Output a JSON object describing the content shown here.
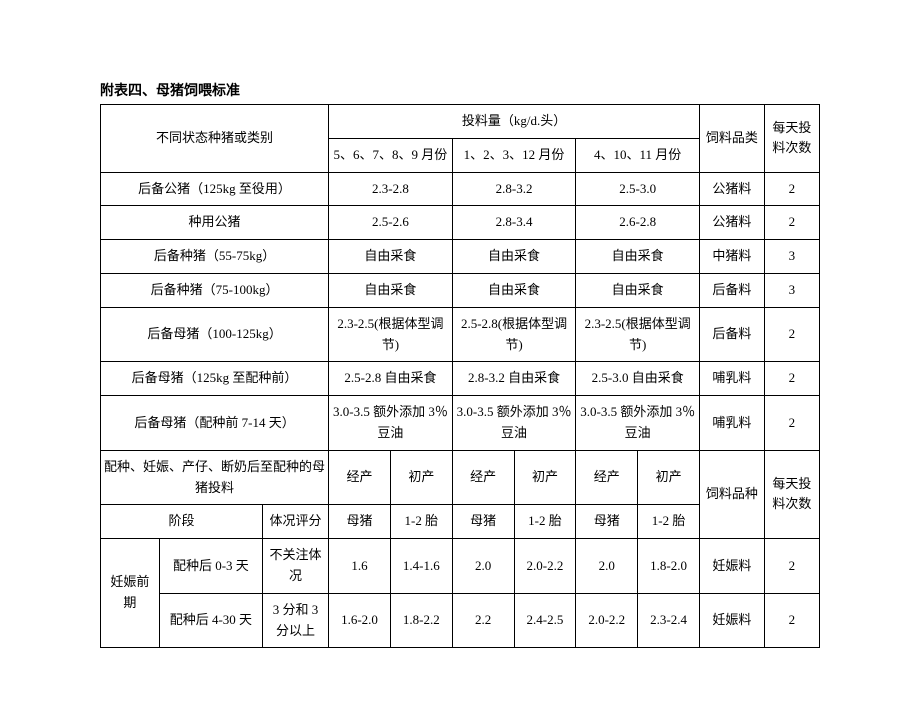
{
  "title": "附表四、母猪饲喂标准",
  "header": {
    "category": "不同状态种猪或类别",
    "feed_amount": "投料量（kg/d.头）",
    "months_a": "5、6、7、8、9 月份",
    "months_b": "1、2、3、12 月份",
    "months_c": "4、10、11 月份",
    "feed_type": "饲料品类",
    "times": "每天投料次数"
  },
  "rows_top": [
    {
      "cat": "后备公猪（125kg 至役用）",
      "a": "2.3-2.8",
      "b": "2.8-3.2",
      "c": "2.5-3.0",
      "feed": "公猪料",
      "times": "2"
    },
    {
      "cat": "种用公猪",
      "a": "2.5-2.6",
      "b": "2.8-3.4",
      "c": "2.6-2.8",
      "feed": "公猪料",
      "times": "2"
    },
    {
      "cat": "后备种猪（55-75kg）",
      "a": "自由采食",
      "b": "自由采食",
      "c": "自由采食",
      "feed": "中猪料",
      "times": "3"
    },
    {
      "cat": "后备种猪（75-100kg）",
      "a": "自由采食",
      "b": "自由采食",
      "c": "自由采食",
      "feed": "后备料",
      "times": "3"
    },
    {
      "cat": "后备母猪（100-125kg）",
      "a": "2.3-2.5(根据体型调节)",
      "b": "2.5-2.8(根据体型调节)",
      "c": "2.3-2.5(根据体型调节)",
      "feed": "后备料",
      "times": "2"
    },
    {
      "cat": "后备母猪（125kg 至配种前）",
      "a": "2.5-2.8 自由采食",
      "b": "2.8-3.2 自由采食",
      "c": "2.5-3.0 自由采食",
      "feed": "哺乳料",
      "times": "2"
    },
    {
      "cat": "后备母猪（配种前 7-14 天）",
      "a": "3.0-3.5 额外添加 3％豆油",
      "b": "3.0-3.5 额外添加 3％豆油",
      "c": "3.0-3.5 额外添加 3％豆油",
      "feed": "哺乳料",
      "times": "2"
    }
  ],
  "sub_header": {
    "cat": "配种、妊娠、产仔、断奶后至配种的母猪投料",
    "jing": "经产母猪",
    "chu": "初产1-2 胎",
    "jing_short": "经产",
    "chu_short": "初产",
    "jing_second": "母猪",
    "chu_second": "1-2 胎",
    "feed": "饲料品种",
    "times": "每天投料次数",
    "stage_col": "阶段",
    "bcs_col": "体况评分"
  },
  "rows_bottom": {
    "group": "妊娠前期",
    "r1": {
      "stage": "配种后 0-3 天",
      "bcs": "不关注体况",
      "d1": "1.6",
      "d2": "1.4-1.6",
      "d3": "2.0",
      "d4": "2.0-2.2",
      "d5": "2.0",
      "d6": "1.8-2.0",
      "feed": "妊娠料",
      "times": "2"
    },
    "r2": {
      "stage": "配种后 4-30 天",
      "bcs": "3 分和 3 分以上",
      "d1": "1.6-2.0",
      "d2": "1.8-2.2",
      "d3": "2.2",
      "d4": "2.4-2.5",
      "d5": "2.0-2.2",
      "d6": "2.3-2.4",
      "feed": "妊娠料",
      "times": "2"
    }
  }
}
